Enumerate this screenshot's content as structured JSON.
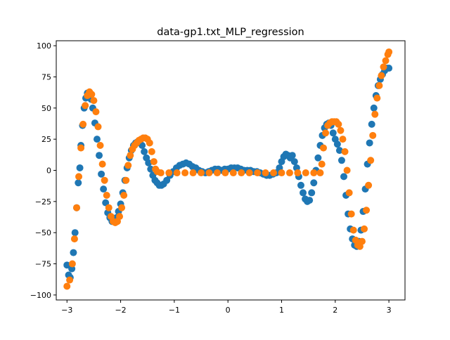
{
  "chart_data": {
    "type": "scatter",
    "title": "data-gp1.txt_MLP_regression",
    "xlabel": "",
    "ylabel": "",
    "xlim": [
      -3.2,
      3.3
    ],
    "ylim": [
      -104,
      104
    ],
    "grid": false,
    "x_ticks": [
      -3,
      -2,
      -1,
      0,
      1,
      2,
      3
    ],
    "y_ticks": [
      -100,
      -75,
      -50,
      -25,
      0,
      25,
      50,
      75,
      100
    ],
    "x_tick_labels": [
      "−3",
      "−2",
      "−1",
      "0",
      "1",
      "2",
      "3"
    ],
    "y_tick_labels": [
      "−100",
      "−75",
      "−50",
      "−25",
      "0",
      "25",
      "50",
      "75",
      "100"
    ],
    "series": [
      {
        "color": "#1f77b4",
        "points": [
          [
            -3.0,
            -76
          ],
          [
            -2.97,
            -84
          ],
          [
            -2.94,
            -86
          ],
          [
            -2.91,
            -79
          ],
          [
            -2.88,
            -66
          ],
          [
            -2.85,
            -50
          ],
          [
            -2.82,
            -30
          ],
          [
            -2.79,
            -10
          ],
          [
            -2.76,
            2
          ],
          [
            -2.74,
            20
          ],
          [
            -2.71,
            36
          ],
          [
            -2.68,
            50
          ],
          [
            -2.65,
            58
          ],
          [
            -2.62,
            62
          ],
          [
            -2.58,
            61
          ],
          [
            -2.55,
            57
          ],
          [
            -2.52,
            50
          ],
          [
            -2.48,
            38
          ],
          [
            -2.44,
            25
          ],
          [
            -2.4,
            12
          ],
          [
            -2.36,
            -3
          ],
          [
            -2.32,
            -15
          ],
          [
            -2.28,
            -26
          ],
          [
            -2.24,
            -34
          ],
          [
            -2.2,
            -38
          ],
          [
            -2.16,
            -41
          ],
          [
            -2.12,
            -41
          ],
          [
            -2.08,
            -38
          ],
          [
            -2.04,
            -33
          ],
          [
            -2.0,
            -27
          ],
          [
            -1.96,
            -18
          ],
          [
            -1.92,
            -8
          ],
          [
            -1.88,
            2
          ],
          [
            -1.84,
            10
          ],
          [
            -1.8,
            16
          ],
          [
            -1.76,
            20
          ],
          [
            -1.72,
            22
          ],
          [
            -1.68,
            23
          ],
          [
            -1.64,
            22
          ],
          [
            -1.6,
            20
          ],
          [
            -1.56,
            15
          ],
          [
            -1.52,
            10
          ],
          [
            -1.48,
            6
          ],
          [
            -1.44,
            1
          ],
          [
            -1.4,
            -4
          ],
          [
            -1.36,
            -8
          ],
          [
            -1.32,
            -10
          ],
          [
            -1.28,
            -12
          ],
          [
            -1.24,
            -12
          ],
          [
            -1.2,
            -11
          ],
          [
            -1.14,
            -8
          ],
          [
            -1.08,
            -4
          ],
          [
            -1.02,
            -1
          ],
          [
            -0.96,
            2
          ],
          [
            -0.9,
            4
          ],
          [
            -0.84,
            5
          ],
          [
            -0.78,
            6
          ],
          [
            -0.72,
            5
          ],
          [
            -0.66,
            3
          ],
          [
            -0.6,
            2
          ],
          [
            -0.54,
            0
          ],
          [
            -0.48,
            -1
          ],
          [
            -0.42,
            -2
          ],
          [
            -0.36,
            -1
          ],
          [
            -0.3,
            0
          ],
          [
            -0.24,
            1
          ],
          [
            -0.18,
            1
          ],
          [
            -0.12,
            0
          ],
          [
            -0.06,
            1
          ],
          [
            0.0,
            1
          ],
          [
            0.06,
            2
          ],
          [
            0.12,
            2
          ],
          [
            0.18,
            2
          ],
          [
            0.24,
            1
          ],
          [
            0.3,
            0
          ],
          [
            0.36,
            0
          ],
          [
            0.42,
            0
          ],
          [
            0.48,
            -1
          ],
          [
            0.54,
            -1
          ],
          [
            0.6,
            -2
          ],
          [
            0.66,
            -3
          ],
          [
            0.72,
            -4
          ],
          [
            0.78,
            -4
          ],
          [
            0.84,
            -3
          ],
          [
            0.9,
            -2
          ],
          [
            0.96,
            2
          ],
          [
            1.0,
            7
          ],
          [
            1.04,
            11
          ],
          [
            1.08,
            13
          ],
          [
            1.12,
            12
          ],
          [
            1.16,
            10
          ],
          [
            1.2,
            12
          ],
          [
            1.24,
            7
          ],
          [
            1.28,
            2
          ],
          [
            1.32,
            -5
          ],
          [
            1.36,
            -12
          ],
          [
            1.4,
            -18
          ],
          [
            1.44,
            -23
          ],
          [
            1.48,
            -25
          ],
          [
            1.52,
            -24
          ],
          [
            1.56,
            -18
          ],
          [
            1.6,
            -10
          ],
          [
            1.64,
            0
          ],
          [
            1.68,
            10
          ],
          [
            1.72,
            20
          ],
          [
            1.76,
            28
          ],
          [
            1.8,
            34
          ],
          [
            1.84,
            37
          ],
          [
            1.88,
            38
          ],
          [
            1.92,
            36
          ],
          [
            1.96,
            30
          ],
          [
            2.0,
            25
          ],
          [
            2.04,
            21
          ],
          [
            2.08,
            16
          ],
          [
            2.12,
            8
          ],
          [
            2.16,
            -5
          ],
          [
            2.2,
            -20
          ],
          [
            2.24,
            -35
          ],
          [
            2.28,
            -47
          ],
          [
            2.32,
            -55
          ],
          [
            2.36,
            -60
          ],
          [
            2.4,
            -61
          ],
          [
            2.44,
            -57
          ],
          [
            2.48,
            -48
          ],
          [
            2.52,
            -33
          ],
          [
            2.56,
            -15
          ],
          [
            2.6,
            5
          ],
          [
            2.64,
            22
          ],
          [
            2.68,
            37
          ],
          [
            2.72,
            50
          ],
          [
            2.76,
            60
          ],
          [
            2.8,
            68
          ],
          [
            2.84,
            73
          ],
          [
            2.88,
            77
          ],
          [
            2.92,
            80
          ],
          [
            2.96,
            82
          ],
          [
            3.0,
            82
          ]
        ]
      },
      {
        "color": "#ff7f0e",
        "points": [
          [
            -3.0,
            -93
          ],
          [
            -2.95,
            -88
          ],
          [
            -2.9,
            -75
          ],
          [
            -2.86,
            -55
          ],
          [
            -2.82,
            -30
          ],
          [
            -2.78,
            -5
          ],
          [
            -2.74,
            18
          ],
          [
            -2.7,
            37
          ],
          [
            -2.66,
            52
          ],
          [
            -2.62,
            60
          ],
          [
            -2.58,
            63
          ],
          [
            -2.54,
            61
          ],
          [
            -2.5,
            56
          ],
          [
            -2.46,
            47
          ],
          [
            -2.42,
            35
          ],
          [
            -2.38,
            20
          ],
          [
            -2.34,
            5
          ],
          [
            -2.3,
            -8
          ],
          [
            -2.26,
            -20
          ],
          [
            -2.22,
            -30
          ],
          [
            -2.18,
            -37
          ],
          [
            -2.14,
            -41
          ],
          [
            -2.1,
            -42
          ],
          [
            -2.06,
            -41
          ],
          [
            -2.02,
            -37
          ],
          [
            -1.98,
            -30
          ],
          [
            -1.94,
            -20
          ],
          [
            -1.9,
            -8
          ],
          [
            -1.86,
            4
          ],
          [
            -1.82,
            12
          ],
          [
            -1.78,
            17
          ],
          [
            -1.74,
            20
          ],
          [
            -1.7,
            22
          ],
          [
            -1.66,
            24
          ],
          [
            -1.62,
            25
          ],
          [
            -1.58,
            26
          ],
          [
            -1.54,
            26
          ],
          [
            -1.5,
            25
          ],
          [
            -1.46,
            22
          ],
          [
            -1.42,
            15
          ],
          [
            -1.38,
            7
          ],
          [
            -1.35,
            1
          ],
          [
            -1.32,
            -1
          ],
          [
            -1.25,
            -2
          ],
          [
            -1.1,
            -2
          ],
          [
            -0.95,
            -2
          ],
          [
            -0.8,
            -2
          ],
          [
            -0.65,
            -2
          ],
          [
            -0.5,
            -2
          ],
          [
            -0.35,
            -2
          ],
          [
            -0.2,
            -2
          ],
          [
            -0.05,
            -2
          ],
          [
            0.1,
            -2
          ],
          [
            0.25,
            -2
          ],
          [
            0.4,
            -2
          ],
          [
            0.55,
            -2
          ],
          [
            0.7,
            -2
          ],
          [
            0.85,
            -2
          ],
          [
            1.0,
            -2
          ],
          [
            1.15,
            -2
          ],
          [
            1.3,
            -2
          ],
          [
            1.45,
            -2
          ],
          [
            1.6,
            -2
          ],
          [
            1.72,
            -2
          ],
          [
            1.75,
            5
          ],
          [
            1.78,
            18
          ],
          [
            1.82,
            30
          ],
          [
            1.86,
            36
          ],
          [
            1.9,
            38
          ],
          [
            1.94,
            39
          ],
          [
            1.98,
            39
          ],
          [
            2.02,
            39
          ],
          [
            2.06,
            37
          ],
          [
            2.1,
            32
          ],
          [
            2.14,
            25
          ],
          [
            2.18,
            15
          ],
          [
            2.22,
            0
          ],
          [
            2.26,
            -18
          ],
          [
            2.3,
            -35
          ],
          [
            2.34,
            -48
          ],
          [
            2.38,
            -56
          ],
          [
            2.42,
            -60
          ],
          [
            2.46,
            -61
          ],
          [
            2.5,
            -57
          ],
          [
            2.54,
            -47
          ],
          [
            2.58,
            -32
          ],
          [
            2.62,
            -12
          ],
          [
            2.66,
            8
          ],
          [
            2.7,
            28
          ],
          [
            2.74,
            45
          ],
          [
            2.78,
            58
          ],
          [
            2.82,
            68
          ],
          [
            2.86,
            76
          ],
          [
            2.9,
            83
          ],
          [
            2.94,
            88
          ],
          [
            2.98,
            93
          ],
          [
            3.0,
            95
          ]
        ]
      }
    ]
  }
}
